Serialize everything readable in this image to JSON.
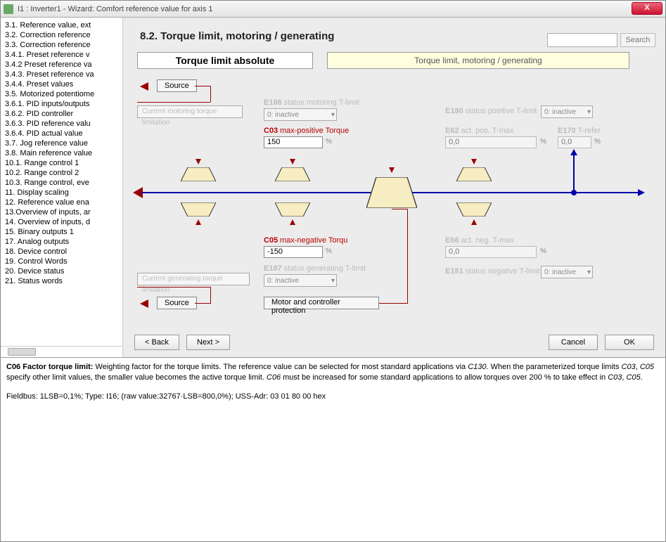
{
  "window": {
    "title": "I1 : Inverter1 - Wizard: Comfort reference value for axis 1"
  },
  "sidebar": {
    "items": [
      "3.1. Reference value, ext",
      "3.2. Correction reference",
      "3.3. Correction reference",
      "3.4.1. Preset reference v",
      "3.4.2 Preset reference va",
      "3.4.3. Preset reference va",
      "3.4.4. Preset values",
      "3.5. Motorized potentiome",
      "3.6.1. PID inputs/outputs",
      "3.6.2. PID controller",
      "3.6.3. PID reference valu",
      "3.6.4. PID actual value",
      "3.7. Jog reference value",
      "3.8. Main reference value",
      "10.1. Range control 1",
      "10.2. Range control 2",
      "10.3. Range control, eve",
      "11. Display scaling",
      "12. Reference value ena",
      "13.Overview of inputs, ar",
      "14. Overview of inputs, d",
      "15. Binary outputs 1",
      "17. Analog outputs",
      "18. Device control",
      "19. Control Words",
      "20. Device status",
      "21. Status words"
    ]
  },
  "page": {
    "heading": "8.2. Torque limit, motoring / generating",
    "search_label": "Search",
    "tab_active": "Torque limit absolute",
    "tab_inactive": "Torque limit, motoring / generating"
  },
  "diagram": {
    "source": "Source",
    "current_motoring": "Current motoring torque limitation",
    "current_generating": "Current generating torque limitation",
    "motor_protection": "Motor and controller protection",
    "e186": {
      "code": "E186",
      "desc": "status motoring T-limit",
      "value": "0: inactive"
    },
    "c03": {
      "code": "C03",
      "desc": "max-positive Torque",
      "value": "150"
    },
    "c05": {
      "code": "C05",
      "desc": "max-negative Torqu",
      "value": "-150"
    },
    "e187": {
      "code": "E187",
      "desc": "status generating T-limit",
      "value": "0: inactive"
    },
    "e180": {
      "code": "E180",
      "desc": "status positive T-limit",
      "value": "0: inactive"
    },
    "e62": {
      "code": "E62",
      "desc": "act. pos. T-max",
      "value": "0,0"
    },
    "e66": {
      "code": "E66",
      "desc": "act. neg. T-max",
      "value": "0,0"
    },
    "e181": {
      "code": "E181",
      "desc": "status negative T-limit",
      "value": "0: inactive"
    },
    "e170": {
      "code": "E170",
      "desc": "T-refer",
      "value": "0,0"
    }
  },
  "buttons": {
    "back": "< Back",
    "next": "Next >",
    "cancel": "Cancel",
    "ok": "OK"
  },
  "info": {
    "headline": "C06  Factor torque limit:",
    "body1": " Weighting factor for the torque limits. The reference value can be selected for most standard applications via ",
    "em1": "C130",
    "body2": ". When the parameterized torque limits ",
    "em2": "C03",
    "em3": "C05",
    "body3": " specify other limit values, the smaller value becomes the active torque limit. ",
    "em4": "C06",
    "body4": " must be increased for some standard applications to allow torques over 200 % to take effect in ",
    "em5": "C03",
    "em6": "C05",
    "fieldbus": "Fieldbus: 1LSB=0,1%; Type: I16; (raw value:32767·LSB=800,0%); USS-Adr: 03 01 80 00 hex"
  },
  "colors": {
    "accent_red": "#990000",
    "signal_blue": "#0000aa",
    "trap_fill": "#f6edc2",
    "tab_highlight": "#ffffe0"
  }
}
